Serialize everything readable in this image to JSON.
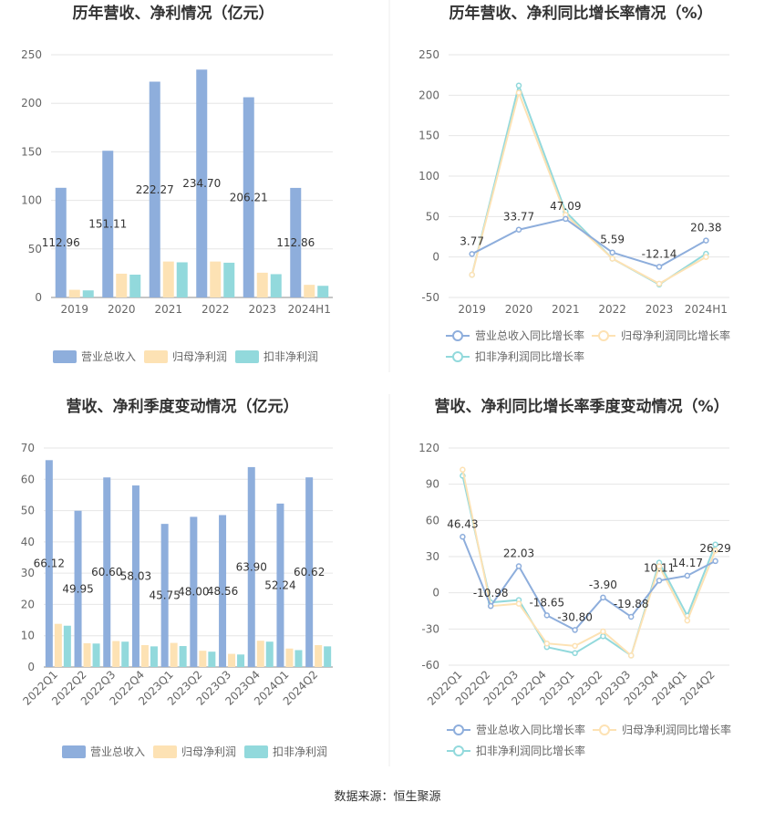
{
  "colors": {
    "revenue": "#8EAEDC",
    "net_profit": "#FDE2B4",
    "deducted_profit": "#92D9DC",
    "revenue_line": "#8EAEDC",
    "net_line": "#FDE2B4",
    "deducted_line": "#92D9DC",
    "grid": "#E6E6E6",
    "axis_text": "#666666",
    "title": "#333333"
  },
  "source": {
    "label": "数据来源：",
    "name": "恒生聚源"
  },
  "chart_data": [
    {
      "type": "bar",
      "title": "历年营收、净利情况（亿元）",
      "categories": [
        "2019",
        "2020",
        "2021",
        "2022",
        "2023",
        "2024H1"
      ],
      "ylim": [
        0,
        250
      ],
      "yticks": [
        0,
        50,
        100,
        150,
        200,
        250
      ],
      "series": [
        {
          "name": "营业总收入",
          "values": [
            112.96,
            151.11,
            222.27,
            234.7,
            206.21,
            112.86
          ],
          "labels": [
            "112.96",
            "151.11",
            "222.27",
            "234.70",
            "206.21",
            "112.86"
          ]
        },
        {
          "name": "归母净利润",
          "values": [
            7.9,
            24.5,
            37.0,
            37.0,
            25.5,
            13.0
          ]
        },
        {
          "name": "扣非净利润",
          "values": [
            7.3,
            23.5,
            36.2,
            35.8,
            24.0,
            12.0
          ]
        }
      ],
      "legend": "bottom"
    },
    {
      "type": "line",
      "title": "历年营收、净利同比增长率情况（%）",
      "categories": [
        "2019",
        "2020",
        "2021",
        "2022",
        "2023",
        "2024H1"
      ],
      "ylim": [
        -50,
        250
      ],
      "yticks": [
        -50,
        0,
        50,
        100,
        150,
        200,
        250
      ],
      "series": [
        {
          "name": "营业总收入同比增长率",
          "values": [
            3.77,
            33.77,
            47.09,
            5.59,
            -12.14,
            20.38
          ],
          "labels": [
            "3.77",
            "33.77",
            "47.09",
            "5.59",
            "-12.14",
            "20.38"
          ]
        },
        {
          "name": "归母净利润同比增长率",
          "values": [
            -22,
            203,
            52,
            -2,
            -33,
            0
          ]
        },
        {
          "name": "扣非净利润同比增长率",
          "values": [
            -22,
            212,
            56,
            -2,
            -34,
            4
          ]
        }
      ],
      "legend": "bottom"
    },
    {
      "type": "bar",
      "title": "营收、净利季度变动情况（亿元）",
      "categories": [
        "2022Q1",
        "2022Q2",
        "2022Q3",
        "2022Q4",
        "2023Q1",
        "2023Q2",
        "2023Q3",
        "2023Q4",
        "2024Q1",
        "2024Q2"
      ],
      "ylim": [
        0,
        70
      ],
      "yticks": [
        0,
        10,
        20,
        30,
        40,
        50,
        60,
        70
      ],
      "series": [
        {
          "name": "营业总收入",
          "values": [
            66.12,
            49.95,
            60.6,
            58.03,
            45.75,
            48.0,
            48.56,
            63.9,
            52.24,
            60.62
          ],
          "labels": [
            "66.12",
            "49.95",
            "60.60",
            "58.03",
            "45.75",
            "48.00",
            "48.56",
            "63.90",
            "52.24",
            "60.62"
          ]
        },
        {
          "name": "归母净利润",
          "values": [
            13.8,
            7.6,
            8.3,
            7.0,
            7.7,
            5.2,
            4.2,
            8.4,
            5.9,
            7.0
          ]
        },
        {
          "name": "扣非净利润",
          "values": [
            13.2,
            7.5,
            8.1,
            6.6,
            6.7,
            4.9,
            4.0,
            8.1,
            5.4,
            6.6
          ]
        }
      ],
      "legend": "bottom"
    },
    {
      "type": "line",
      "title": "营收、净利同比增长率季度变动情况（%）",
      "categories": [
        "2022Q1",
        "2022Q2",
        "2022Q3",
        "2022Q4",
        "2023Q1",
        "2023Q2",
        "2023Q3",
        "2023Q4",
        "2024Q1",
        "2024Q2"
      ],
      "ylim": [
        -60,
        120
      ],
      "yticks": [
        -60,
        -30,
        0,
        30,
        60,
        90,
        120
      ],
      "series": [
        {
          "name": "营业总收入同比增长率",
          "values": [
            46.43,
            -10.98,
            22.03,
            -18.65,
            -30.8,
            -3.9,
            -19.88,
            10.11,
            14.17,
            26.29
          ],
          "labels": [
            "46.43",
            "-10.98",
            "22.03",
            "-18.65",
            "-30.80",
            "-3.90",
            "-19.88",
            "10.11",
            "14.17",
            "26.29"
          ]
        },
        {
          "name": "归母净利润同比增长率",
          "values": [
            102,
            -11,
            -9,
            -42,
            -44,
            -32,
            -52,
            22,
            -23,
            35
          ]
        },
        {
          "name": "扣非净利润同比增长率",
          "values": [
            97,
            -8,
            -6,
            -45,
            -50,
            -36,
            -52,
            25,
            -19,
            40
          ]
        }
      ],
      "legend": "bottom"
    }
  ]
}
